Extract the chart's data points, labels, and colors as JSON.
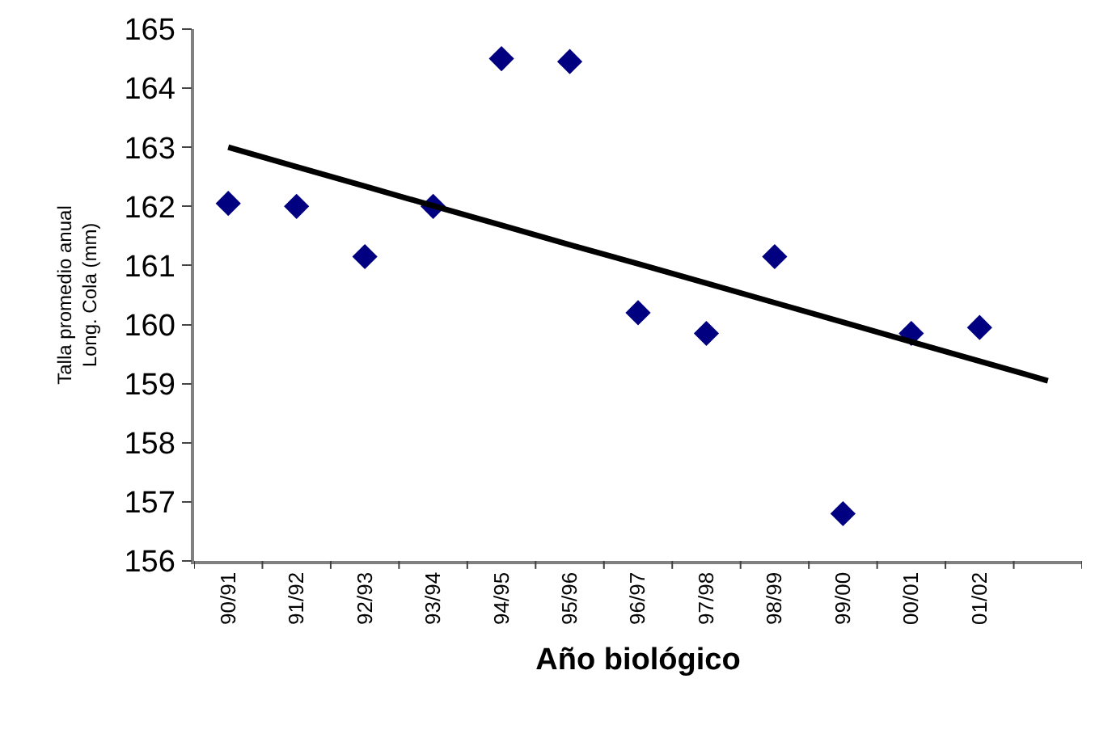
{
  "chart_data": {
    "type": "scatter",
    "xlabel": "Año biológico",
    "ylabel": "Talla promedio anual\nLong. Cola (mm)",
    "categories": [
      "90/91",
      "91/92",
      "92/93",
      "93/94",
      "94/95",
      "95/96",
      "96/97",
      "97/98",
      "98/99",
      "99/00",
      "00/01",
      "01/02",
      null
    ],
    "series": [
      {
        "color": "#000080",
        "marker": "diamond",
        "values": [
          162.05,
          162.0,
          161.15,
          162.0,
          164.5,
          164.45,
          160.2,
          159.85,
          161.15,
          156.8,
          159.85,
          159.95,
          null
        ]
      },
      {
        "type": "line",
        "color": "#000000",
        "marker": "none",
        "line_style": "solid",
        "values": [
          163.0,
          162.67,
          162.34,
          162.01,
          161.68,
          161.35,
          161.03,
          160.7,
          160.37,
          160.04,
          159.71,
          159.38,
          159.05
        ]
      }
    ],
    "ylim": [
      156,
      165
    ],
    "yticks": [
      156,
      157,
      158,
      159,
      160,
      161,
      162,
      163,
      164,
      165
    ],
    "grid": false
  }
}
